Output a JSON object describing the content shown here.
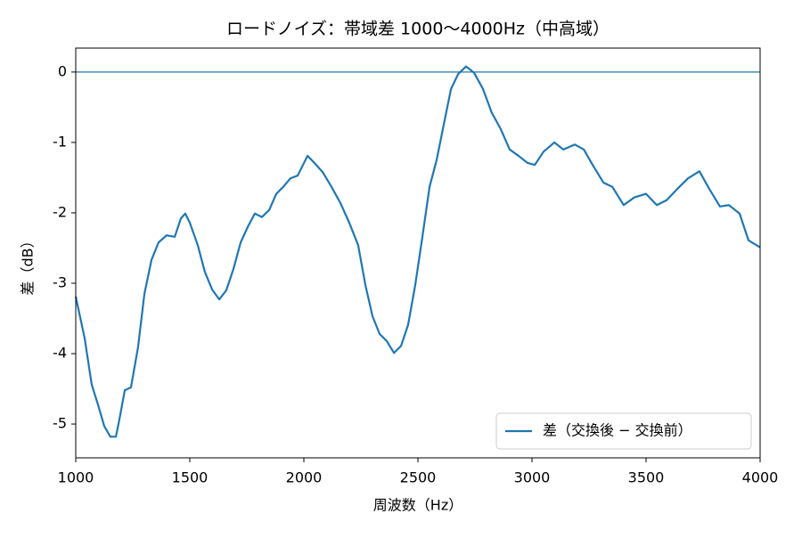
{
  "chart_data": {
    "type": "line",
    "title": "ロードノイズ：帯域差 1000〜4000Hz（中高域）",
    "xlabel": "周波数（Hz）",
    "ylabel": "差（dB）",
    "x": [
      1000,
      1039,
      1070,
      1098,
      1125,
      1152,
      1176,
      1191,
      1215,
      1242,
      1273,
      1301,
      1332,
      1363,
      1398,
      1434,
      1461,
      1480,
      1500,
      1535,
      1566,
      1598,
      1629,
      1660,
      1691,
      1723,
      1754,
      1785,
      1816,
      1848,
      1879,
      1910,
      1941,
      1973,
      2016,
      2043,
      2082,
      2121,
      2160,
      2199,
      2238,
      2270,
      2301,
      2332,
      2363,
      2395,
      2426,
      2457,
      2488,
      2520,
      2551,
      2582,
      2613,
      2645,
      2676,
      2711,
      2746,
      2785,
      2824,
      2863,
      2902,
      2941,
      2980,
      3012,
      3051,
      3098,
      3137,
      3188,
      3227,
      3266,
      3313,
      3352,
      3402,
      3449,
      3500,
      3547,
      3590,
      3637,
      3684,
      3734,
      3777,
      3824,
      3863,
      3910,
      3949,
      4000
    ],
    "series": [
      {
        "name": "差（交換後 − 交換前）",
        "color": "#1f77b4",
        "values": [
          -3.19,
          -3.78,
          -4.44,
          -4.73,
          -5.03,
          -5.18,
          -5.18,
          -4.94,
          -4.52,
          -4.48,
          -3.91,
          -3.15,
          -2.67,
          -2.42,
          -2.32,
          -2.34,
          -2.08,
          -2.01,
          -2.14,
          -2.46,
          -2.84,
          -3.09,
          -3.23,
          -3.1,
          -2.8,
          -2.42,
          -2.2,
          -2.01,
          -2.06,
          -1.96,
          -1.73,
          -1.63,
          -1.51,
          -1.47,
          -1.19,
          -1.28,
          -1.42,
          -1.63,
          -1.86,
          -2.14,
          -2.46,
          -3.03,
          -3.47,
          -3.72,
          -3.82,
          -3.99,
          -3.89,
          -3.59,
          -3.03,
          -2.33,
          -1.63,
          -1.25,
          -0.75,
          -0.24,
          -0.03,
          0.08,
          -0.01,
          -0.24,
          -0.58,
          -0.81,
          -1.1,
          -1.19,
          -1.29,
          -1.32,
          -1.13,
          -1.0,
          -1.1,
          -1.03,
          -1.1,
          -1.32,
          -1.57,
          -1.63,
          -1.89,
          -1.78,
          -1.73,
          -1.89,
          -1.82,
          -1.66,
          -1.51,
          -1.41,
          -1.66,
          -1.91,
          -1.89,
          -2.01,
          -2.39,
          -2.49
        ]
      }
    ],
    "hline": 0,
    "xlim": [
      1000,
      4000
    ],
    "xticks": [
      1000,
      1500,
      2000,
      2500,
      3000,
      3500,
      4000
    ],
    "ylim": [
      -5.48,
      0.34
    ],
    "yticks": [
      0,
      -1,
      -2,
      -3,
      -4,
      -5
    ],
    "legend": "lower right"
  }
}
